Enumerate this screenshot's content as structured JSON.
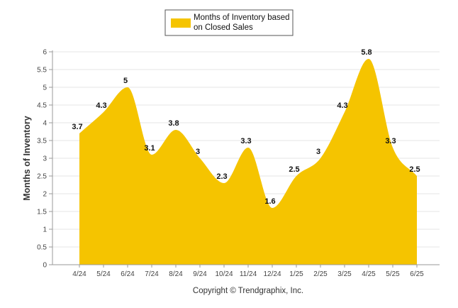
{
  "chart_data": {
    "type": "area",
    "ylabel": "Months of Inventory",
    "xlabel": "",
    "categories": [
      "4/24",
      "5/24",
      "6/24",
      "7/24",
      "8/24",
      "9/24",
      "10/24",
      "11/24",
      "12/24",
      "1/25",
      "2/25",
      "3/25",
      "4/25",
      "5/25",
      "6/25"
    ],
    "series": [
      {
        "name": "Months of Inventory based on Closed Sales",
        "values": [
          3.7,
          4.3,
          5,
          3.1,
          3.8,
          3,
          2.3,
          3.3,
          1.6,
          2.5,
          3,
          4.3,
          5.8,
          3.3,
          2.5
        ]
      }
    ],
    "ylim": [
      0,
      6
    ],
    "yticks": [
      "0",
      "0.5",
      "1",
      "1.5",
      "2",
      "2.5",
      "3",
      "3.5",
      "4",
      "4.5",
      "5",
      "5.5",
      "6"
    ],
    "data_labels": [
      "3.7",
      "4.3",
      "5",
      "3.1",
      "3.8",
      "3",
      "2.3",
      "3.3",
      "1.6",
      "2.5",
      "3",
      "4.3",
      "5.8",
      "3.3",
      "2.5"
    ],
    "grid": true,
    "legend_position": "top-center",
    "colors": {
      "area": "#F5C400",
      "grid": "#e6e6e6",
      "axis": "#999999"
    }
  },
  "legend": {
    "line1": "Months of Inventory based",
    "line2": "on Closed Sales"
  },
  "footer": {
    "copyright": "Copyright © Trendgraphix, Inc."
  }
}
